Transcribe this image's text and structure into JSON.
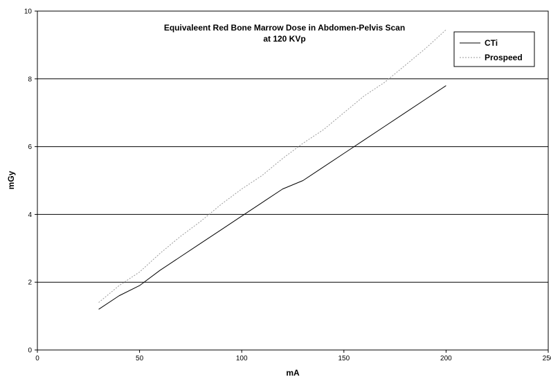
{
  "chart_data": {
    "type": "line",
    "title": "Equivaleent Red Bone Marrow Dose in Abdomen-Pelvis Scan",
    "subtitle": "at 120 KVp",
    "xlabel": "mA",
    "ylabel": "mGy",
    "xlim": [
      0,
      250
    ],
    "ylim": [
      0,
      10
    ],
    "x_ticks": [
      "0",
      "50",
      "100",
      "150",
      "200",
      "250"
    ],
    "y_ticks": [
      "0",
      "2",
      "4",
      "6",
      "8",
      "10"
    ],
    "grid": "horizontal",
    "legend_position": "top-right",
    "series": [
      {
        "name": "CTi",
        "style": "solid",
        "color": "#000000",
        "x": [
          30,
          40,
          50,
          60,
          70,
          80,
          90,
          100,
          110,
          120,
          130,
          140,
          150,
          160,
          170,
          180,
          190,
          200
        ],
        "y": [
          1.2,
          1.6,
          1.9,
          2.35,
          2.75,
          3.15,
          3.55,
          3.95,
          4.35,
          4.75,
          5.0,
          5.4,
          5.8,
          6.2,
          6.6,
          7.0,
          7.4,
          7.8
        ]
      },
      {
        "name": "Prospeed",
        "style": "dotted",
        "color": "#999999",
        "x": [
          30,
          40,
          50,
          60,
          70,
          80,
          90,
          100,
          110,
          120,
          130,
          140,
          150,
          160,
          170,
          180,
          190,
          200
        ],
        "y": [
          1.4,
          1.9,
          2.3,
          2.85,
          3.35,
          3.8,
          4.3,
          4.75,
          5.15,
          5.65,
          6.1,
          6.5,
          7.0,
          7.5,
          7.9,
          8.4,
          8.9,
          9.45
        ]
      }
    ]
  }
}
